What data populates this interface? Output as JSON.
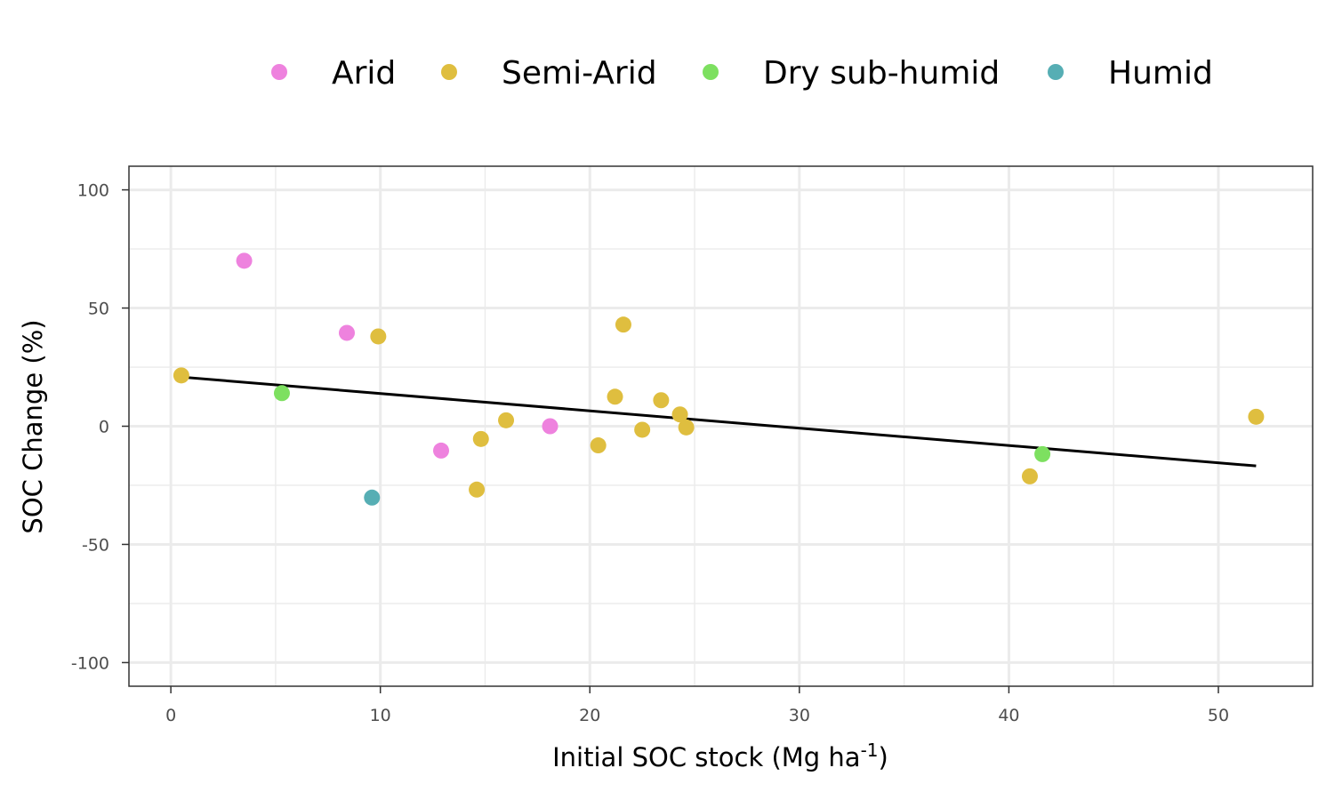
{
  "chart_data": {
    "type": "scatter",
    "title": "",
    "xlabel": "Initial SOC stock (Mg ha",
    "xlabel_superscript": "-1",
    "xlabel_suffix": ")",
    "ylabel": "SOC Change (%)",
    "xlim": [
      -2,
      54.5
    ],
    "ylim": [
      -110,
      110
    ],
    "x_ticks": [
      0,
      10,
      20,
      30,
      40,
      50
    ],
    "x_tick_labels": [
      "0",
      "10",
      "20",
      "30",
      "40",
      "50"
    ],
    "x_minor_ticks": [
      5,
      15,
      25,
      35,
      45
    ],
    "y_ticks": [
      100,
      50,
      0,
      -50,
      -100
    ],
    "y_tick_labels": [
      "100",
      "50",
      "0",
      "-50",
      "-100"
    ],
    "y_minor_ticks": [
      75,
      25,
      -25,
      -75
    ],
    "grid": true,
    "legend_position": "top",
    "series": [
      {
        "name": "Arid",
        "color": "#EE82DE",
        "points": [
          [
            3.5,
            70
          ],
          [
            8.4,
            39.5
          ],
          [
            12.9,
            -10.3
          ],
          [
            18.1,
            0
          ]
        ]
      },
      {
        "name": "Semi-Arid",
        "color": "#DFBE3F",
        "points": [
          [
            0.5,
            21.5
          ],
          [
            9.9,
            38
          ],
          [
            14.6,
            -26.8
          ],
          [
            14.8,
            -5.4
          ],
          [
            16.0,
            2.5
          ],
          [
            20.4,
            -8.1
          ],
          [
            21.2,
            12.5
          ],
          [
            21.6,
            43
          ],
          [
            22.5,
            -1.5
          ],
          [
            23.4,
            11
          ],
          [
            24.3,
            5
          ],
          [
            24.6,
            -0.5
          ],
          [
            41.0,
            -21.2
          ],
          [
            51.8,
            4
          ]
        ]
      },
      {
        "name": "Dry sub-humid",
        "color": "#7DE060",
        "points": [
          [
            5.3,
            14
          ],
          [
            41.6,
            -11.8
          ]
        ]
      },
      {
        "name": "Humid",
        "color": "#56AEB4",
        "points": [
          [
            9.6,
            -30.2
          ]
        ]
      }
    ],
    "trend_line": {
      "color": "#000000",
      "from": [
        0.5,
        20.8
      ],
      "to": [
        51.8,
        -16.8
      ]
    }
  }
}
